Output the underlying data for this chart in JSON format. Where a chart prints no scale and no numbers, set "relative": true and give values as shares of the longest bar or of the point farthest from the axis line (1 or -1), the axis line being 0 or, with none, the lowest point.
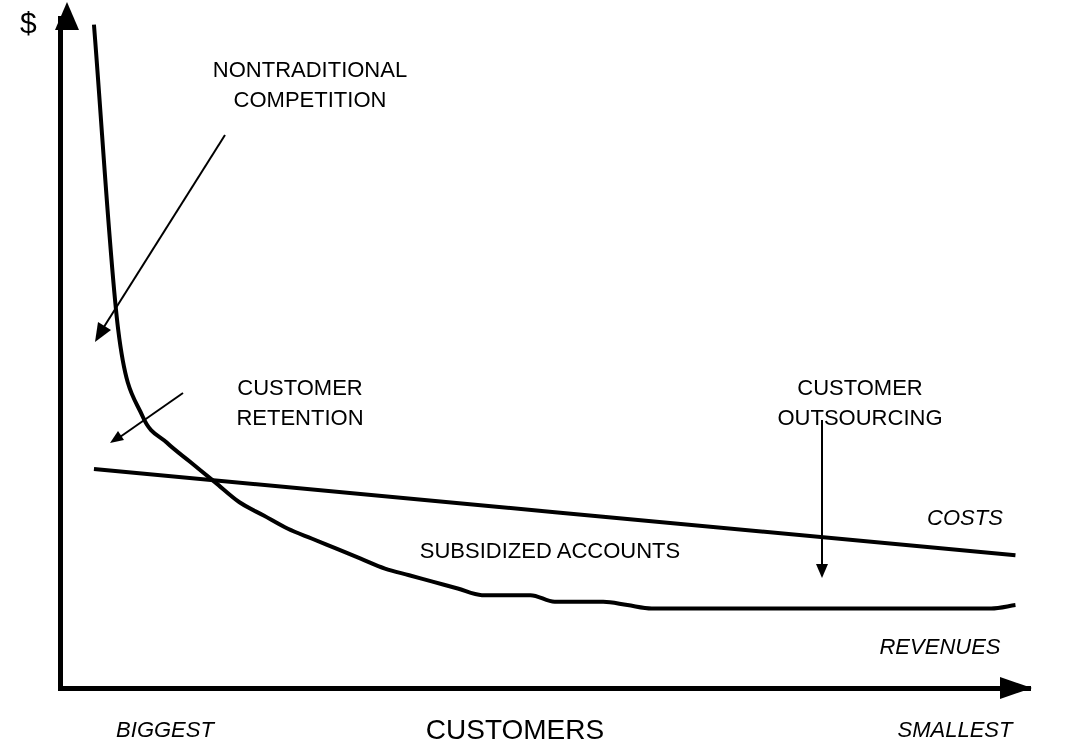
{
  "chart_data": {
    "type": "line",
    "xlabel": "CUSTOMERS",
    "ylabel": "$",
    "relative": true,
    "legend": false,
    "grid": false,
    "marker": "none",
    "categories": [
      null,
      null,
      null,
      null,
      null,
      null,
      null,
      null,
      null,
      null,
      null,
      null,
      null,
      null,
      null,
      null,
      null,
      null,
      null,
      null,
      null,
      null,
      null,
      null,
      null,
      null,
      null,
      null,
      null,
      null,
      null,
      null,
      null,
      null,
      null,
      null,
      null,
      null,
      null
    ],
    "series": [
      {
        "name": "COSTS",
        "color": "#000000",
        "values": [
          0.33,
          null,
          null,
          null,
          null,
          null,
          null,
          null,
          null,
          null,
          null,
          null,
          null,
          null,
          null,
          null,
          null,
          null,
          null,
          null,
          null,
          null,
          null,
          null,
          null,
          null,
          null,
          null,
          null,
          null,
          null,
          null,
          null,
          null,
          null,
          null,
          null,
          null,
          0.2
        ]
      },
      {
        "name": "REVENUES",
        "color": "#000000",
        "values": [
          1,
          0.54,
          0.41,
          0.37,
          0.34,
          0.31,
          0.28,
          0.26,
          0.24,
          0.225,
          0.21,
          0.195,
          0.18,
          0.17,
          0.16,
          0.15,
          0.14,
          0.14,
          0.14,
          0.13,
          0.13,
          0.13,
          0.125,
          0.12,
          0.12,
          0.12,
          0.12,
          0.12,
          0.12,
          0.12,
          0.12,
          0.12,
          0.12,
          0.12,
          0.12,
          0.12,
          0.12,
          0.12,
          0.125
        ]
      }
    ],
    "annotations": [
      "NONTRADITIONAL COMPETITION",
      "CUSTOMER RETENTION",
      "CUSTOMER OUTSOURCING",
      "SUBSIDIZED ACCOUNTS",
      "BIGGEST",
      "SMALLEST"
    ]
  }
}
